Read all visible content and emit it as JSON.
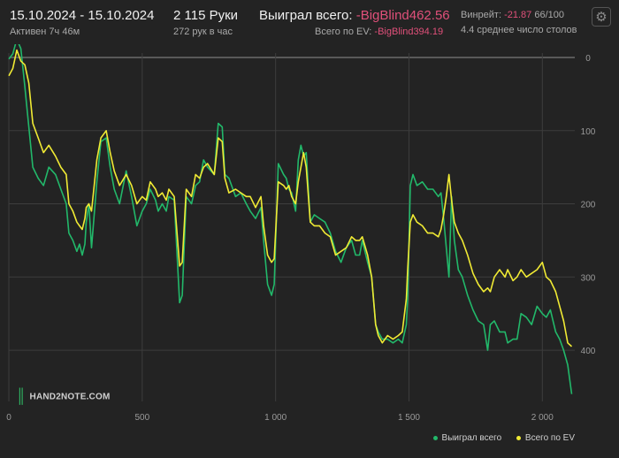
{
  "header": {
    "date_range": "15.10.2024 - 15.10.2024",
    "active_time": "Активен 7ч 46м",
    "hands_total": "2 115 Руки",
    "hands_per_hour": "272 рук в час",
    "won_total_label": "Выиграл всего:",
    "won_total_value": "-BigBlind462.56",
    "ev_total_label": "Всего по EV:",
    "ev_total_value": "-BigBlind394.19",
    "winrate_label": "Винрейт:",
    "winrate_value": "-21.87",
    "winrate_unit": "66/100",
    "tables_avg": "4.4 среднее число столов",
    "settings_icon": "gear-icon"
  },
  "watermark": "HAND2NOTE.COM",
  "colors": {
    "background": "#232323",
    "grid": "#3d3d3d",
    "won": "#22b86a",
    "ev": "#f0ea34",
    "negative": "#e0507a"
  },
  "chart_data": {
    "type": "line",
    "xlim": [
      0,
      2115
    ],
    "ylim": [
      0,
      470
    ],
    "y_inverted": true,
    "y_axis_side": "right",
    "x_ticks": [
      0,
      500,
      1000,
      1500,
      2000
    ],
    "x_tick_labels": [
      "0",
      "500",
      "1 000",
      "1 500",
      "2 000"
    ],
    "y_ticks": [
      0,
      100,
      200,
      300,
      400
    ],
    "y_tick_labels": [
      "0",
      "100",
      "200",
      "300",
      "400"
    ],
    "legend": [
      "Выиграл всего",
      "Всего по EV"
    ],
    "legend_position": "bottom-right",
    "series": [
      {
        "name": "Выиграл всего",
        "color": "#22b86a",
        "points": [
          [
            0,
            2
          ],
          [
            15,
            -5
          ],
          [
            30,
            -25
          ],
          [
            45,
            -12
          ],
          [
            60,
            40
          ],
          [
            75,
            95
          ],
          [
            90,
            150
          ],
          [
            110,
            165
          ],
          [
            130,
            175
          ],
          [
            150,
            150
          ],
          [
            175,
            160
          ],
          [
            195,
            180
          ],
          [
            215,
            200
          ],
          [
            225,
            240
          ],
          [
            240,
            250
          ],
          [
            255,
            265
          ],
          [
            265,
            255
          ],
          [
            275,
            270
          ],
          [
            285,
            255
          ],
          [
            290,
            225
          ],
          [
            300,
            200
          ],
          [
            310,
            260
          ],
          [
            330,
            170
          ],
          [
            345,
            115
          ],
          [
            365,
            110
          ],
          [
            380,
            150
          ],
          [
            395,
            180
          ],
          [
            415,
            200
          ],
          [
            440,
            155
          ],
          [
            460,
            190
          ],
          [
            480,
            230
          ],
          [
            500,
            210
          ],
          [
            515,
            200
          ],
          [
            530,
            180
          ],
          [
            550,
            195
          ],
          [
            560,
            210
          ],
          [
            575,
            200
          ],
          [
            590,
            210
          ],
          [
            600,
            190
          ],
          [
            620,
            195
          ],
          [
            640,
            335
          ],
          [
            650,
            325
          ],
          [
            665,
            190
          ],
          [
            685,
            200
          ],
          [
            700,
            175
          ],
          [
            715,
            170
          ],
          [
            730,
            140
          ],
          [
            745,
            150
          ],
          [
            770,
            160
          ],
          [
            785,
            90
          ],
          [
            800,
            95
          ],
          [
            810,
            160
          ],
          [
            825,
            165
          ],
          [
            850,
            190
          ],
          [
            870,
            185
          ],
          [
            890,
            200
          ],
          [
            905,
            210
          ],
          [
            925,
            220
          ],
          [
            945,
            205
          ],
          [
            955,
            250
          ],
          [
            970,
            310
          ],
          [
            985,
            325
          ],
          [
            995,
            310
          ],
          [
            1010,
            145
          ],
          [
            1030,
            160
          ],
          [
            1040,
            165
          ],
          [
            1050,
            180
          ],
          [
            1060,
            185
          ],
          [
            1075,
            210
          ],
          [
            1085,
            140
          ],
          [
            1095,
            120
          ],
          [
            1105,
            135
          ],
          [
            1115,
            130
          ],
          [
            1130,
            225
          ],
          [
            1145,
            215
          ],
          [
            1165,
            220
          ],
          [
            1185,
            225
          ],
          [
            1205,
            240
          ],
          [
            1225,
            265
          ],
          [
            1245,
            280
          ],
          [
            1265,
            260
          ],
          [
            1285,
            250
          ],
          [
            1300,
            270
          ],
          [
            1315,
            270
          ],
          [
            1325,
            250
          ],
          [
            1345,
            280
          ],
          [
            1360,
            300
          ],
          [
            1375,
            365
          ],
          [
            1385,
            375
          ],
          [
            1400,
            385
          ],
          [
            1420,
            385
          ],
          [
            1440,
            390
          ],
          [
            1460,
            385
          ],
          [
            1475,
            390
          ],
          [
            1490,
            365
          ],
          [
            1495,
            330
          ],
          [
            1505,
            175
          ],
          [
            1515,
            160
          ],
          [
            1530,
            175
          ],
          [
            1550,
            170
          ],
          [
            1570,
            180
          ],
          [
            1590,
            180
          ],
          [
            1610,
            190
          ],
          [
            1620,
            185
          ],
          [
            1630,
            220
          ],
          [
            1640,
            260
          ],
          [
            1650,
            300
          ],
          [
            1660,
            190
          ],
          [
            1670,
            250
          ],
          [
            1685,
            290
          ],
          [
            1700,
            300
          ],
          [
            1720,
            325
          ],
          [
            1740,
            345
          ],
          [
            1760,
            360
          ],
          [
            1780,
            365
          ],
          [
            1795,
            400
          ],
          [
            1805,
            365
          ],
          [
            1820,
            360
          ],
          [
            1840,
            375
          ],
          [
            1860,
            375
          ],
          [
            1870,
            390
          ],
          [
            1890,
            385
          ],
          [
            1905,
            385
          ],
          [
            1920,
            350
          ],
          [
            1940,
            355
          ],
          [
            1960,
            365
          ],
          [
            1980,
            340
          ],
          [
            2000,
            350
          ],
          [
            2015,
            355
          ],
          [
            2030,
            345
          ],
          [
            2050,
            375
          ],
          [
            2065,
            385
          ],
          [
            2080,
            400
          ],
          [
            2095,
            420
          ],
          [
            2110,
            460
          ]
        ]
      },
      {
        "name": "Всего по EV",
        "color": "#f0ea34",
        "points": [
          [
            0,
            25
          ],
          [
            15,
            15
          ],
          [
            30,
            -10
          ],
          [
            45,
            5
          ],
          [
            60,
            10
          ],
          [
            75,
            35
          ],
          [
            90,
            90
          ],
          [
            110,
            110
          ],
          [
            130,
            130
          ],
          [
            150,
            120
          ],
          [
            175,
            135
          ],
          [
            195,
            150
          ],
          [
            215,
            160
          ],
          [
            225,
            200
          ],
          [
            240,
            210
          ],
          [
            255,
            225
          ],
          [
            265,
            230
          ],
          [
            275,
            235
          ],
          [
            285,
            220
          ],
          [
            290,
            205
          ],
          [
            300,
            200
          ],
          [
            310,
            210
          ],
          [
            330,
            140
          ],
          [
            345,
            110
          ],
          [
            365,
            100
          ],
          [
            380,
            130
          ],
          [
            395,
            155
          ],
          [
            415,
            175
          ],
          [
            440,
            160
          ],
          [
            460,
            175
          ],
          [
            480,
            200
          ],
          [
            500,
            190
          ],
          [
            515,
            195
          ],
          [
            530,
            170
          ],
          [
            550,
            180
          ],
          [
            560,
            190
          ],
          [
            575,
            185
          ],
          [
            590,
            195
          ],
          [
            600,
            180
          ],
          [
            620,
            190
          ],
          [
            640,
            285
          ],
          [
            650,
            280
          ],
          [
            665,
            180
          ],
          [
            685,
            190
          ],
          [
            700,
            160
          ],
          [
            715,
            165
          ],
          [
            730,
            150
          ],
          [
            745,
            145
          ],
          [
            770,
            160
          ],
          [
            785,
            110
          ],
          [
            800,
            115
          ],
          [
            810,
            165
          ],
          [
            825,
            185
          ],
          [
            850,
            180
          ],
          [
            870,
            185
          ],
          [
            890,
            190
          ],
          [
            905,
            190
          ],
          [
            925,
            205
          ],
          [
            945,
            190
          ],
          [
            955,
            230
          ],
          [
            970,
            270
          ],
          [
            985,
            280
          ],
          [
            995,
            275
          ],
          [
            1010,
            170
          ],
          [
            1030,
            175
          ],
          [
            1040,
            180
          ],
          [
            1050,
            175
          ],
          [
            1060,
            190
          ],
          [
            1075,
            200
          ],
          [
            1085,
            170
          ],
          [
            1095,
            150
          ],
          [
            1105,
            130
          ],
          [
            1115,
            150
          ],
          [
            1130,
            225
          ],
          [
            1145,
            230
          ],
          [
            1165,
            230
          ],
          [
            1185,
            240
          ],
          [
            1205,
            245
          ],
          [
            1225,
            270
          ],
          [
            1245,
            265
          ],
          [
            1265,
            260
          ],
          [
            1285,
            245
          ],
          [
            1300,
            250
          ],
          [
            1315,
            250
          ],
          [
            1325,
            245
          ],
          [
            1345,
            270
          ],
          [
            1360,
            300
          ],
          [
            1375,
            365
          ],
          [
            1385,
            380
          ],
          [
            1400,
            390
          ],
          [
            1420,
            380
          ],
          [
            1440,
            385
          ],
          [
            1460,
            380
          ],
          [
            1475,
            375
          ],
          [
            1490,
            330
          ],
          [
            1495,
            290
          ],
          [
            1505,
            225
          ],
          [
            1515,
            215
          ],
          [
            1530,
            225
          ],
          [
            1550,
            230
          ],
          [
            1570,
            240
          ],
          [
            1590,
            240
          ],
          [
            1610,
            245
          ],
          [
            1620,
            235
          ],
          [
            1630,
            215
          ],
          [
            1640,
            190
          ],
          [
            1650,
            160
          ],
          [
            1660,
            195
          ],
          [
            1670,
            225
          ],
          [
            1685,
            240
          ],
          [
            1700,
            250
          ],
          [
            1720,
            270
          ],
          [
            1740,
            295
          ],
          [
            1760,
            310
          ],
          [
            1780,
            320
          ],
          [
            1795,
            315
          ],
          [
            1805,
            320
          ],
          [
            1820,
            300
          ],
          [
            1840,
            290
          ],
          [
            1860,
            300
          ],
          [
            1870,
            290
          ],
          [
            1890,
            305
          ],
          [
            1905,
            300
          ],
          [
            1920,
            290
          ],
          [
            1940,
            300
          ],
          [
            1960,
            295
          ],
          [
            1980,
            290
          ],
          [
            2000,
            280
          ],
          [
            2015,
            300
          ],
          [
            2030,
            305
          ],
          [
            2050,
            320
          ],
          [
            2065,
            340
          ],
          [
            2080,
            360
          ],
          [
            2095,
            390
          ],
          [
            2110,
            395
          ]
        ]
      }
    ]
  }
}
